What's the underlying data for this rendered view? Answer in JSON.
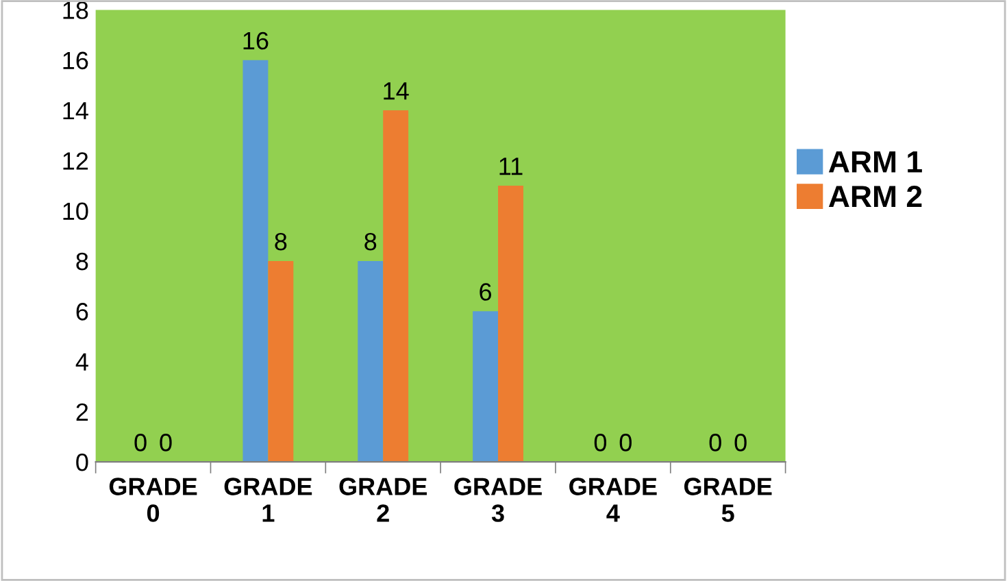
{
  "chart_data": {
    "type": "bar",
    "categories": [
      "GRADE 0",
      "GRADE 1",
      "GRADE 2",
      "GRADE 3",
      "GRADE 4",
      "GRADE 5"
    ],
    "series": [
      {
        "name": "ARM 1",
        "color": "#5b9bd5",
        "values": [
          0,
          16,
          8,
          6,
          0,
          0
        ]
      },
      {
        "name": "ARM 2",
        "color": "#ed7d31",
        "values": [
          0,
          8,
          14,
          11,
          0,
          0
        ]
      }
    ],
    "ylim": [
      0,
      18
    ],
    "yticks": [
      0,
      2,
      4,
      6,
      8,
      10,
      12,
      14,
      16,
      18
    ],
    "data_labels": true,
    "grid": false,
    "legend": "right"
  }
}
